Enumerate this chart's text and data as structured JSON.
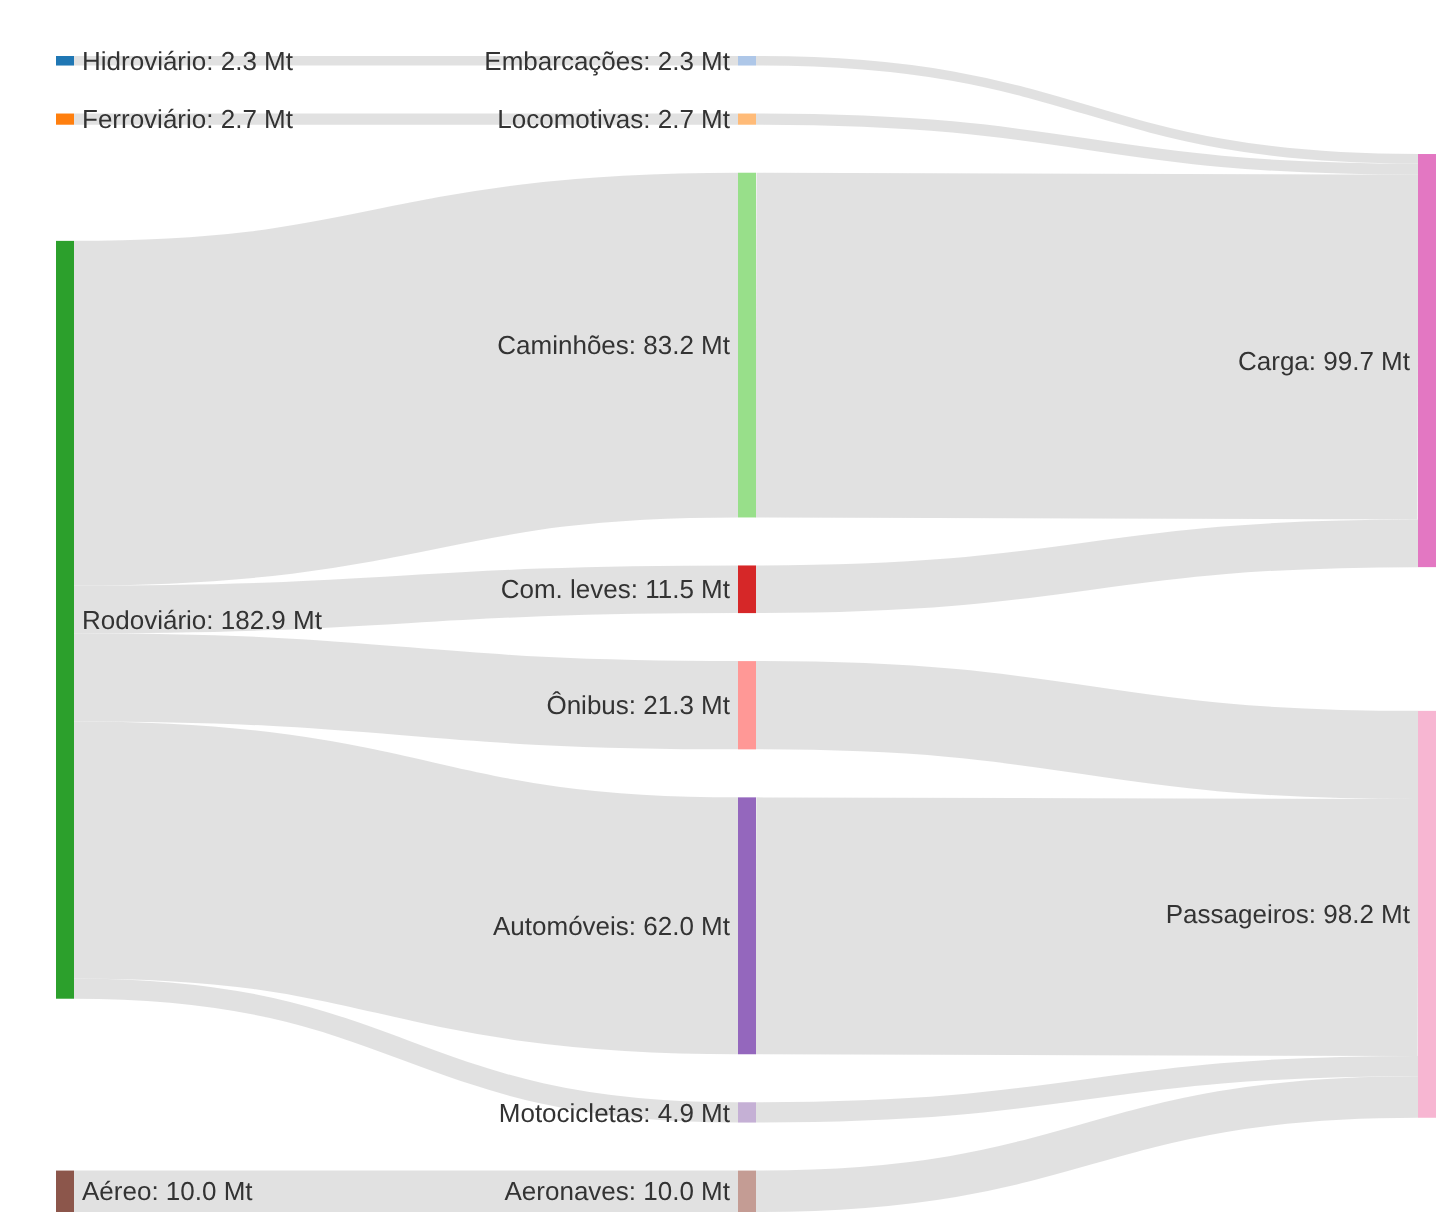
{
  "chart_data": {
    "type": "other",
    "categories": [
      "Hidroviário",
      "Ferroviário",
      "Rodoviário",
      "Aéreo",
      "Embarcações",
      "Locomotivas",
      "Caminhões",
      "Com. leves",
      "Ônibus",
      "Automóveis",
      "Motocicletas",
      "Aeronaves",
      "Carga",
      "Passageiros"
    ],
    "values": [
      2.3,
      2.7,
      182.9,
      10.0,
      2.3,
      2.7,
      83.2,
      11.5,
      21.3,
      62.0,
      4.9,
      10.0,
      99.7,
      98.2
    ],
    "value_labels": [
      ": 2.3 Mt",
      ": 2.7 Mt",
      ": 182.9 Mt",
      ": 10.0 Mt",
      ": 2.3 Mt",
      ": 2.7 Mt",
      ": 83.2 Mt",
      ": 11.5 Mt",
      ": 21.3 Mt",
      ": 62.0 Mt",
      ": 4.9 Mt",
      ": 10.0 Mt",
      ": 99.7 Mt",
      ": 98.2 Mt"
    ],
    "colors": [
      "#1f77b4",
      "#ff7f0e",
      "#2ca02c",
      "#8c564b",
      "#aec7e8",
      "#ffbb78",
      "#98df8a",
      "#d62728",
      "#ff9896",
      "#9467bd",
      "#c5b0d5",
      "#c49c94",
      "#e377c2",
      "#f7b6d2"
    ]
  }
}
